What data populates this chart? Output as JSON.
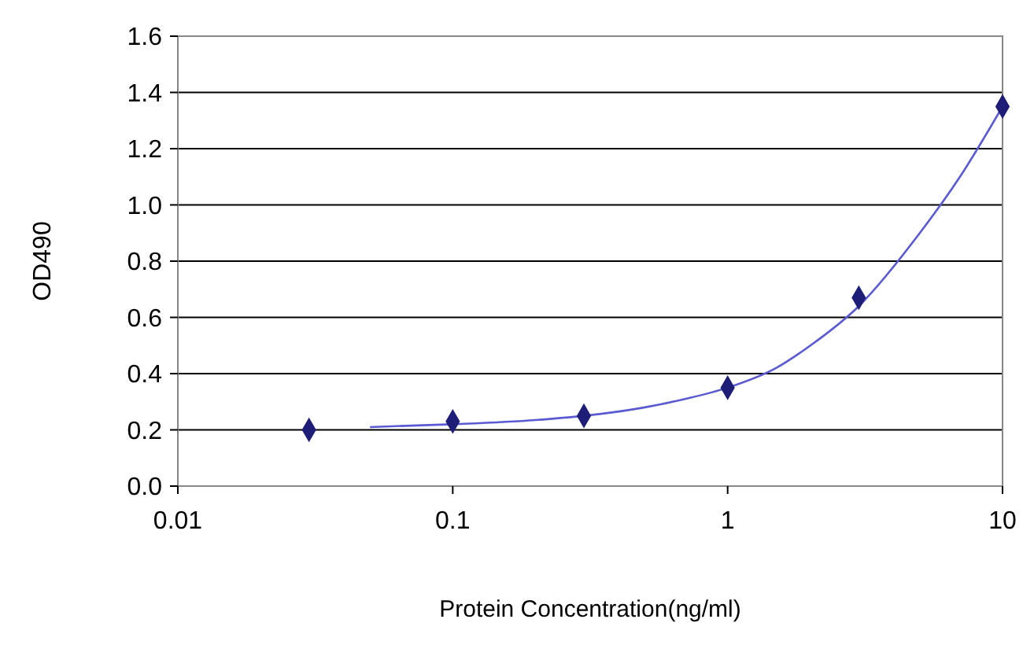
{
  "chart_data": {
    "type": "scatter",
    "xlabel": "Protein Concentration(ng/ml)",
    "ylabel": "OD490",
    "log": "x",
    "grid": "y",
    "marker": "diamond",
    "xlim": [
      0.01,
      10
    ],
    "xticks": [
      0.01,
      0.1,
      1,
      10
    ],
    "ylim": [
      0,
      1.6
    ],
    "yticks": [
      {
        "value": 0,
        "label": "0.0"
      },
      {
        "value": 0.2,
        "label": "0.2"
      },
      {
        "value": 0.4,
        "label": "0.4"
      },
      {
        "value": 0.6,
        "label": "0.6"
      },
      {
        "value": 0.8,
        "label": "0.8"
      },
      {
        "value": 1,
        "label": "1.0"
      },
      {
        "value": 1.2,
        "label": "1.2"
      },
      {
        "value": 1.4,
        "label": "1.4"
      },
      {
        "value": 1.6,
        "label": "1.6"
      }
    ],
    "series": [
      {
        "type": "line",
        "marker": "none",
        "color": "#5a5ad2",
        "x": [
          0.05,
          0.1,
          0.2,
          0.3,
          0.5,
          0.7,
          1,
          1.5,
          2,
          3,
          5,
          7,
          10
        ],
        "values": [
          0.21,
          0.22,
          0.235,
          0.25,
          0.28,
          0.31,
          0.35,
          0.42,
          0.5,
          0.64,
          0.9,
          1.1,
          1.35
        ]
      },
      {
        "color": "#1e1e78",
        "x": [
          0.03,
          0.1,
          0.3,
          1,
          3,
          10
        ],
        "values": [
          0.2,
          0.23,
          0.25,
          0.35,
          0.67,
          1.35
        ]
      }
    ]
  }
}
